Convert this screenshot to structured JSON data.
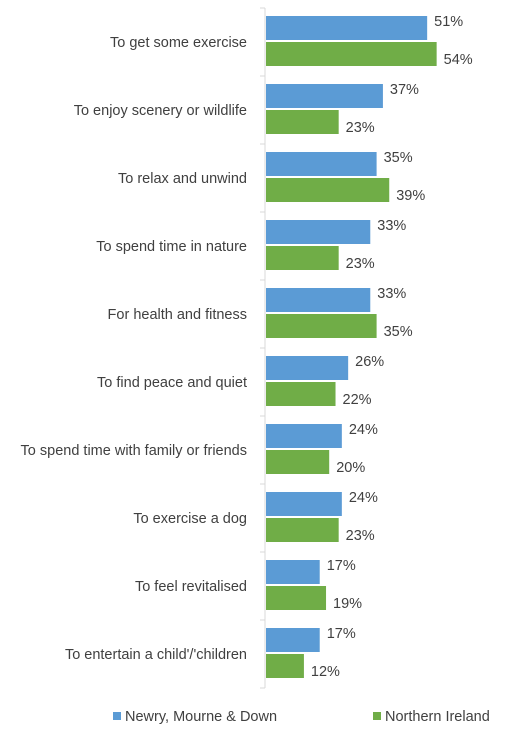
{
  "chart_data": {
    "type": "bar",
    "orientation": "horizontal",
    "categories": [
      "To get some exercise",
      "To enjoy scenery or wildlife",
      "To relax and unwind",
      "To spend time in nature",
      "For health and fitness",
      "To find peace and quiet",
      "To spend time with family or friends",
      "To exercise a dog",
      "To feel revitalised",
      "To entertain a child'/'children"
    ],
    "series": [
      {
        "name": "Newry, Mourne & Down",
        "color": "#5b9bd5",
        "values": [
          51,
          37,
          35,
          33,
          33,
          26,
          24,
          24,
          17,
          17
        ],
        "labels": [
          "51%",
          "37%",
          "35%",
          "33%",
          "33%",
          "26%",
          "24%",
          "24%",
          "17%",
          "17%"
        ]
      },
      {
        "name": "Northern Ireland",
        "color": "#70ad47",
        "values": [
          54,
          23,
          39,
          23,
          35,
          22,
          20,
          23,
          19,
          12
        ],
        "labels": [
          "54%",
          "23%",
          "39%",
          "23%",
          "35%",
          "22%",
          "20%",
          "23%",
          "19%",
          "12%"
        ]
      }
    ],
    "value_unit": "%",
    "xlim": [
      0,
      70
    ],
    "grid": false,
    "legend_position": "bottom",
    "axis_color": "#d9d9d9",
    "label_color": "#404040"
  }
}
